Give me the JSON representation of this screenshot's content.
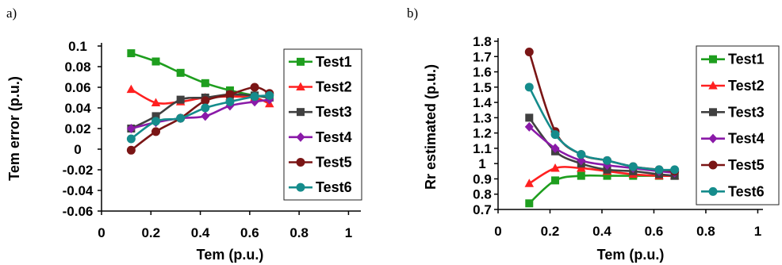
{
  "chart_data": [
    {
      "panel_label": "a)",
      "type": "line",
      "title": "",
      "xlabel": "Tem (p.u.)",
      "ylabel": "Tem error (p.u.)",
      "xlim": [
        0,
        1.05
      ],
      "ylim": [
        -0.06,
        0.1
      ],
      "xticks": [
        "0",
        "0.2",
        "0.4",
        "0.6",
        "0.8",
        "1"
      ],
      "yticks": [
        "0.1",
        "0.08",
        "0.06",
        "0.04",
        "0.02",
        "0",
        "-0.02",
        "-0.04",
        "-0.06"
      ],
      "xtick_values": [
        0,
        0.2,
        0.4,
        0.6,
        0.8,
        1
      ],
      "ytick_values": [
        0.1,
        0.08,
        0.06,
        0.04,
        0.02,
        0,
        -0.02,
        -0.04,
        -0.06
      ],
      "grid": "off",
      "legend": "right",
      "series": [
        {
          "name": "Test1",
          "color": "#1e9e1e",
          "marker": "square",
          "x": [
            0.12,
            0.22,
            0.32,
            0.42,
            0.52,
            0.62,
            0.68
          ],
          "y": [
            0.093,
            0.085,
            0.074,
            0.064,
            0.057,
            0.052,
            0.05
          ]
        },
        {
          "name": "Test2",
          "color": "#ff2020",
          "marker": "triangle",
          "x": [
            0.12,
            0.22,
            0.32,
            0.42,
            0.52,
            0.62,
            0.68
          ],
          "y": [
            0.058,
            0.045,
            0.046,
            0.05,
            0.051,
            0.05,
            0.044
          ]
        },
        {
          "name": "Test3",
          "color": "#404040",
          "marker": "square",
          "x": [
            0.12,
            0.22,
            0.32,
            0.42,
            0.52,
            0.62,
            0.68
          ],
          "y": [
            0.02,
            0.032,
            0.048,
            0.05,
            0.053,
            0.052,
            0.05
          ]
        },
        {
          "name": "Test4",
          "color": "#8a1aa8",
          "marker": "diamond",
          "x": [
            0.12,
            0.22,
            0.32,
            0.42,
            0.52,
            0.62,
            0.68
          ],
          "y": [
            0.02,
            0.026,
            0.03,
            0.032,
            0.042,
            0.046,
            0.048
          ]
        },
        {
          "name": "Test5",
          "color": "#7a1515",
          "marker": "circle",
          "x": [
            0.12,
            0.22,
            0.32,
            0.42,
            0.52,
            0.62,
            0.68
          ],
          "y": [
            -0.001,
            0.017,
            0.03,
            0.047,
            0.053,
            0.06,
            0.054
          ]
        },
        {
          "name": "Test6",
          "color": "#158c8c",
          "marker": "circle",
          "x": [
            0.12,
            0.22,
            0.32,
            0.42,
            0.52,
            0.62,
            0.68
          ],
          "y": [
            0.01,
            0.027,
            0.03,
            0.04,
            0.046,
            0.051,
            0.052
          ]
        }
      ]
    },
    {
      "panel_label": "b)",
      "type": "line",
      "title": "",
      "xlabel": "Tem (p.u.)",
      "ylabel": "Rr estimated  (p.u.)",
      "xlim": [
        0,
        1.02
      ],
      "ylim": [
        0.7,
        1.8
      ],
      "xticks": [
        "0",
        "0.2",
        "0.4",
        "0.6",
        "0.8",
        "1"
      ],
      "yticks": [
        "1.8",
        "1.7",
        "1.6",
        "1.5",
        "1.4",
        "1.3",
        "1.2",
        "1.1",
        "1",
        "0.9",
        "0.8",
        "0.7"
      ],
      "xtick_values": [
        0,
        0.2,
        0.4,
        0.6,
        0.8,
        1
      ],
      "ytick_values": [
        1.8,
        1.7,
        1.6,
        1.5,
        1.4,
        1.3,
        1.2,
        1.1,
        1,
        0.9,
        0.8,
        0.7
      ],
      "grid": "off",
      "legend": "right",
      "series": [
        {
          "name": "Test1",
          "color": "#1e9e1e",
          "marker": "square",
          "x": [
            0.12,
            0.22,
            0.32,
            0.42,
            0.52,
            0.62,
            0.68
          ],
          "y": [
            0.74,
            0.89,
            0.92,
            0.92,
            0.92,
            0.92,
            0.92
          ]
        },
        {
          "name": "Test2",
          "color": "#ff2020",
          "marker": "triangle",
          "x": [
            0.12,
            0.22,
            0.32,
            0.42,
            0.52,
            0.62,
            0.68
          ],
          "y": [
            0.87,
            0.97,
            0.97,
            0.95,
            0.93,
            0.92,
            0.92
          ]
        },
        {
          "name": "Test3",
          "color": "#404040",
          "marker": "square",
          "x": [
            0.12,
            0.22,
            0.32,
            0.42,
            0.52,
            0.62,
            0.68
          ],
          "y": [
            1.3,
            1.08,
            1.0,
            0.96,
            0.95,
            0.93,
            0.92
          ]
        },
        {
          "name": "Test4",
          "color": "#8a1aa8",
          "marker": "diamond",
          "x": [
            0.12,
            0.22,
            0.32,
            0.42,
            0.52,
            0.62,
            0.68
          ],
          "y": [
            1.24,
            1.1,
            1.02,
            0.99,
            0.97,
            0.95,
            0.94
          ]
        },
        {
          "name": "Test5",
          "color": "#7a1515",
          "marker": "circle",
          "x": [
            0.12,
            0.22,
            0.32,
            0.42,
            0.52,
            0.62,
            0.68
          ],
          "y": [
            1.73,
            1.21,
            1.06,
            1.02,
            0.98,
            0.96,
            0.95
          ]
        },
        {
          "name": "Test6",
          "color": "#158c8c",
          "marker": "circle",
          "x": [
            0.12,
            0.22,
            0.32,
            0.42,
            0.52,
            0.62,
            0.68
          ],
          "y": [
            1.5,
            1.19,
            1.06,
            1.02,
            0.98,
            0.96,
            0.96
          ]
        }
      ]
    }
  ]
}
